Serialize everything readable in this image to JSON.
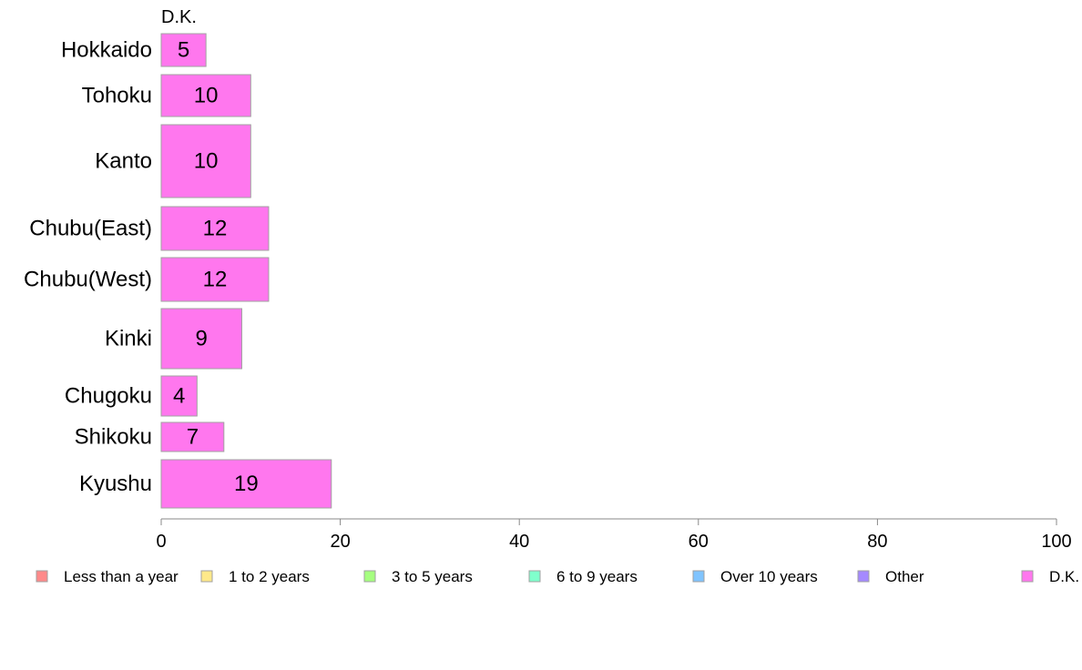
{
  "chart_data": {
    "type": "bar",
    "orientation": "horizontal",
    "stacked": true,
    "series_header": "D.K.",
    "categories": [
      "Hokkaido",
      "Tohoku",
      "Kanto",
      "Chubu(East)",
      "Chubu(West)",
      "Kinki",
      "Chugoku",
      "Shikoku",
      "Kyushu"
    ],
    "series": [
      {
        "name": "D.K.",
        "color": "#ff77ee",
        "values": [
          5,
          10,
          10,
          12,
          12,
          9,
          4,
          7,
          19
        ],
        "value_labels": [
          "5",
          "10",
          "10",
          "12",
          "12",
          "9",
          "4",
          "7",
          "19"
        ]
      }
    ],
    "xlim": [
      0,
      100
    ],
    "xticks": [
      0,
      20,
      40,
      60,
      80,
      100
    ],
    "grid": false,
    "legend_position": "bottom",
    "legend": [
      {
        "label": "Less than a year",
        "color": "#ff8a8a"
      },
      {
        "label": "1 to 2 years",
        "color": "#ffe98a"
      },
      {
        "label": "3 to 5 years",
        "color": "#a6ff80"
      },
      {
        "label": "6 to 9 years",
        "color": "#80ffcc"
      },
      {
        "label": "Over 10 years",
        "color": "#80c4ff"
      },
      {
        "label": "Other",
        "color": "#a58aff"
      },
      {
        "label": "D.K.",
        "color": "#ff77ee"
      }
    ]
  }
}
